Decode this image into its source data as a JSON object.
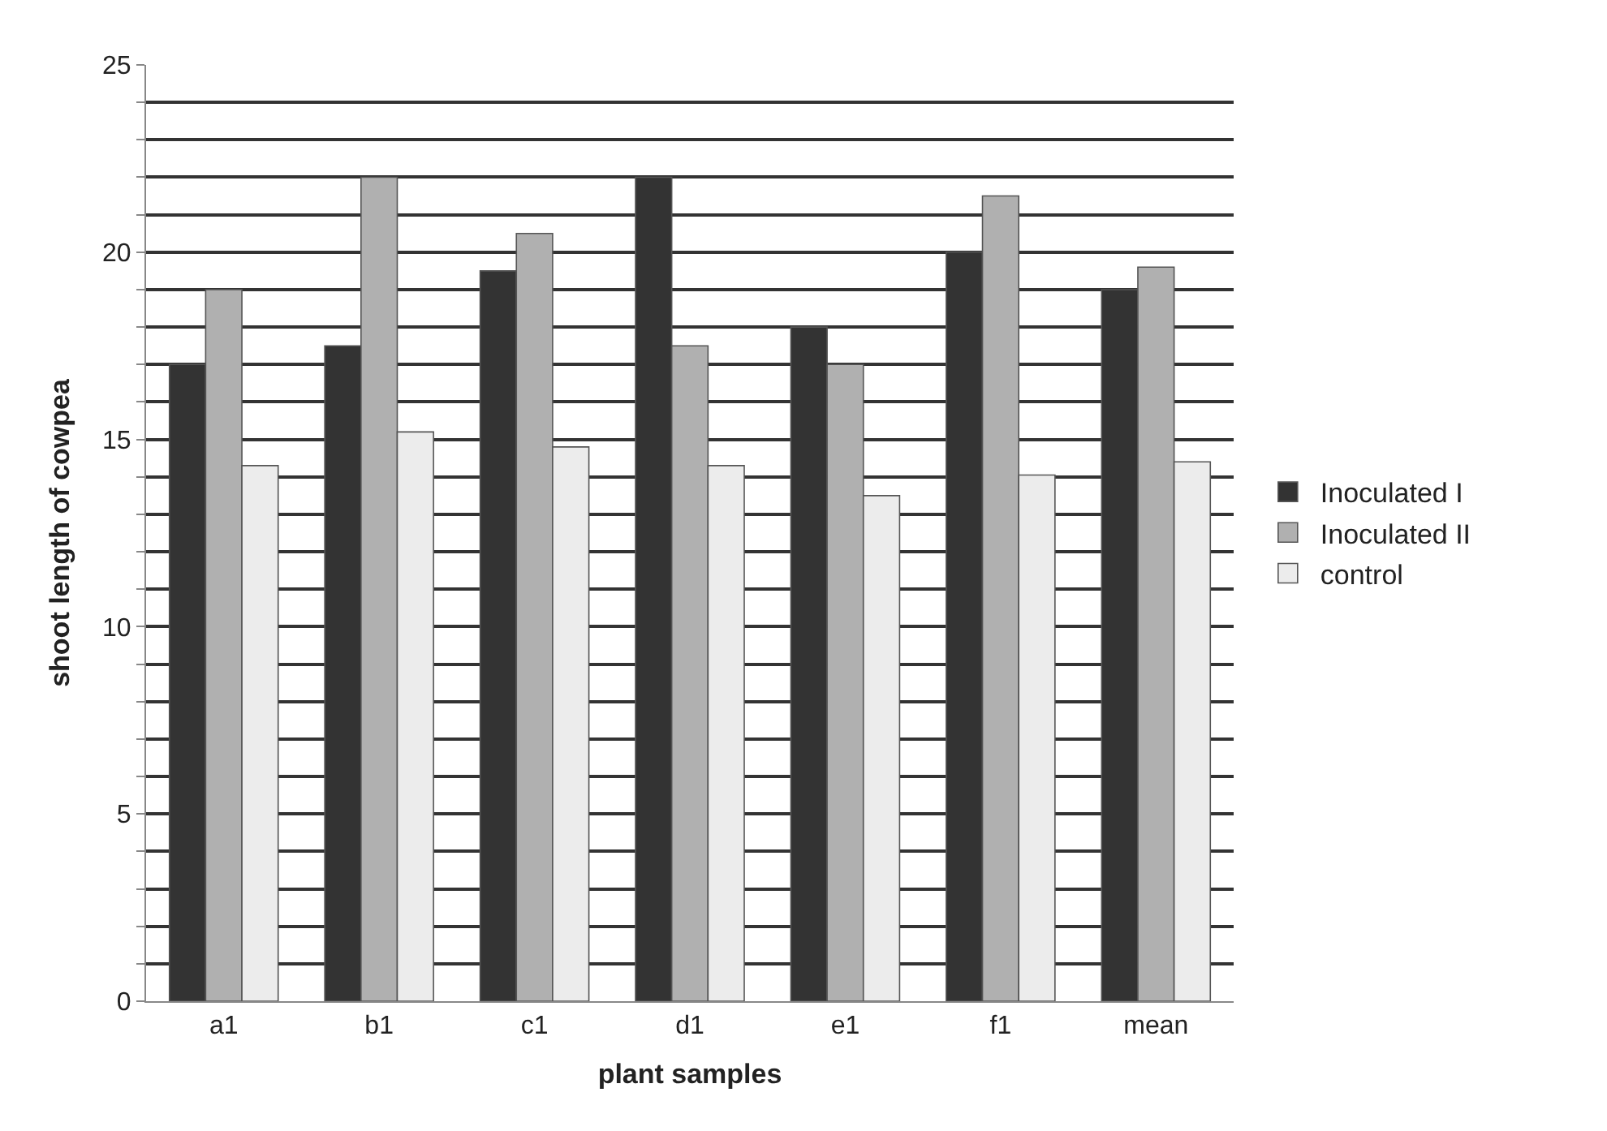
{
  "chart_data": {
    "type": "bar",
    "xlabel": "plant samples",
    "ylabel": "shoot length of cowpea",
    "categories": [
      "a1",
      "b1",
      "c1",
      "d1",
      "e1",
      "f1",
      "mean"
    ],
    "series": [
      {
        "name": "Inoculated I",
        "color": "#333333",
        "values": [
          17,
          17.5,
          19.5,
          22,
          18,
          20,
          19
        ]
      },
      {
        "name": "Inoculated II",
        "color": "#b0b0b0",
        "values": [
          19,
          22,
          20.5,
          17.5,
          17,
          21.5,
          19.6
        ]
      },
      {
        "name": "control",
        "color": "#ececec",
        "values": [
          14.3,
          15.2,
          14.8,
          14.3,
          13.5,
          14.05,
          14.4
        ]
      }
    ],
    "ylim": [
      0,
      25
    ],
    "yticks": [
      0,
      {
        "value": 1,
        "label": null
      },
      {
        "value": 2,
        "label": null
      },
      {
        "value": 3,
        "label": null
      },
      {
        "value": 4,
        "label": null
      },
      5,
      {
        "value": 6,
        "label": null
      },
      {
        "value": 7,
        "label": null
      },
      {
        "value": 8,
        "label": null
      },
      {
        "value": 9,
        "label": null
      },
      10,
      {
        "value": 11,
        "label": null
      },
      {
        "value": 12,
        "label": null
      },
      {
        "value": 13,
        "label": null
      },
      {
        "value": 14,
        "label": null
      },
      15,
      {
        "value": 16,
        "label": null
      },
      {
        "value": 17,
        "label": null
      },
      {
        "value": 18,
        "label": null
      },
      {
        "value": 19,
        "label": null
      },
      20,
      {
        "value": 21,
        "label": null
      },
      {
        "value": 22,
        "label": null
      },
      {
        "value": 23,
        "label": null
      },
      {
        "value": 24,
        "label": null
      },
      25
    ],
    "grid": "y",
    "legend": "right"
  }
}
